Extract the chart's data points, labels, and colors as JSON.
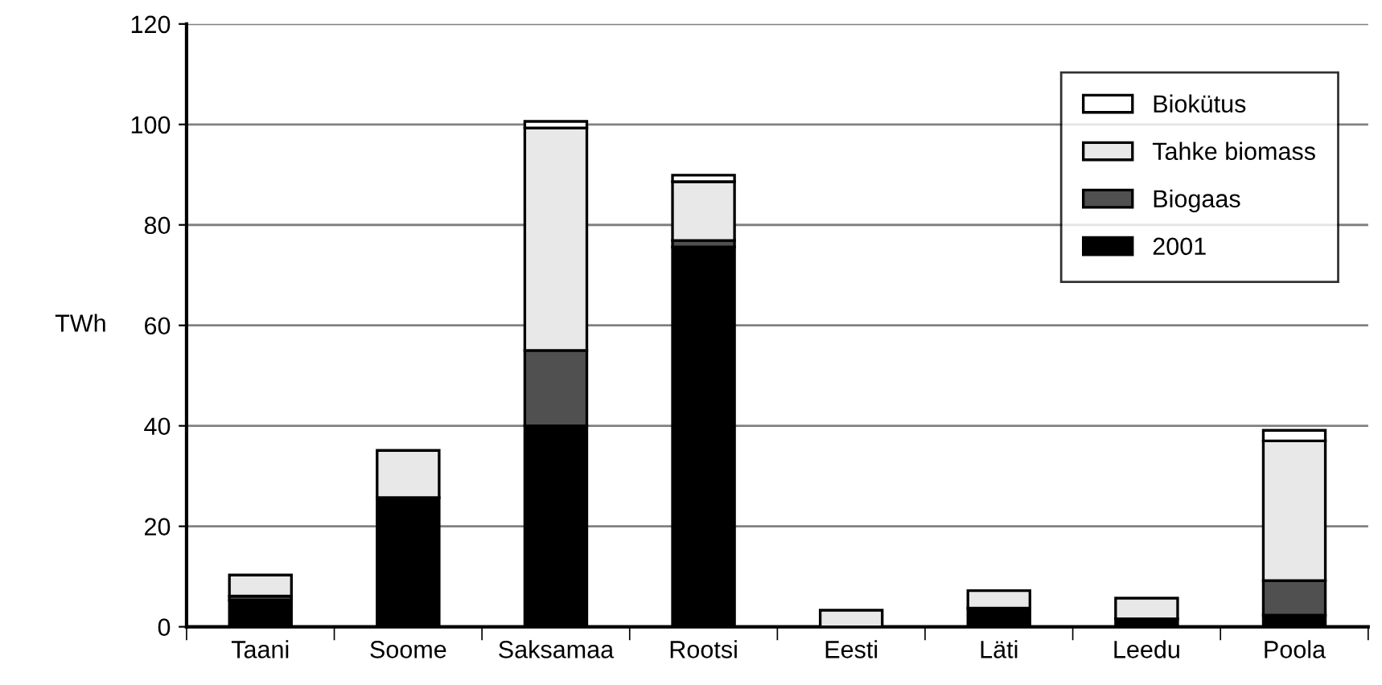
{
  "chart_data": {
    "type": "bar",
    "stacked": true,
    "ylabel": "TWh",
    "categories": [
      "Taani",
      "Soome",
      "Saksamaa",
      "Rootsi",
      "Eesti",
      "Läti",
      "Leedu",
      "Poola"
    ],
    "series": [
      {
        "name": "2001",
        "color": "#000000",
        "values": [
          5.3,
          25.7,
          40,
          75.6,
          null,
          3.7,
          1.6,
          2.3
        ]
      },
      {
        "name": "Biogaas",
        "color": "#505050",
        "values": [
          0.8,
          null,
          15,
          1.3,
          null,
          null,
          null,
          6.9
        ]
      },
      {
        "name": "Tahke biomass",
        "color": "#e8e8e8",
        "values": [
          4.2,
          9.4,
          44.3,
          11.7,
          3.3,
          3.5,
          4.1,
          27.8
        ]
      },
      {
        "name": "Biokütus",
        "color": "#ffffff",
        "values": [
          null,
          null,
          1.3,
          1.3,
          null,
          null,
          null,
          2.1
        ]
      }
    ],
    "ylim": [
      0,
      120
    ],
    "yticks": [
      0,
      20,
      40,
      60,
      80,
      100,
      120
    ],
    "grid": "y",
    "legend": "top right"
  }
}
